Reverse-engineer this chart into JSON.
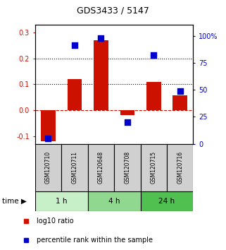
{
  "title": "GDS3433 / 5147",
  "samples": [
    "GSM120710",
    "GSM120711",
    "GSM120648",
    "GSM120708",
    "GSM120715",
    "GSM120716"
  ],
  "log10_ratio": [
    -0.12,
    0.12,
    0.27,
    -0.018,
    0.11,
    0.057
  ],
  "percentile_rank": [
    5,
    91,
    98,
    20,
    82,
    49
  ],
  "left_ylim": [
    -0.13,
    0.33
  ],
  "right_ylim": [
    0,
    110
  ],
  "left_yticks": [
    -0.1,
    0.0,
    0.1,
    0.2,
    0.3
  ],
  "right_yticks": [
    0,
    25,
    50,
    75,
    100
  ],
  "right_yticklabels": [
    "0",
    "25",
    "50",
    "75",
    "100%"
  ],
  "dotted_lines": [
    0.1,
    0.2
  ],
  "groups": [
    {
      "label": "1 h",
      "indices": [
        0,
        1
      ],
      "color": "#c8f0c8"
    },
    {
      "label": "4 h",
      "indices": [
        2,
        3
      ],
      "color": "#90d890"
    },
    {
      "label": "24 h",
      "indices": [
        4,
        5
      ],
      "color": "#50c050"
    }
  ],
  "bar_color": "#cc1100",
  "point_color": "#0000cc",
  "bar_width": 0.55,
  "point_size": 28,
  "background_color": "#ffffff",
  "sample_box_color": "#d0d0d0",
  "legend_labels": [
    "log10 ratio",
    "percentile rank within the sample"
  ],
  "time_label": "time"
}
